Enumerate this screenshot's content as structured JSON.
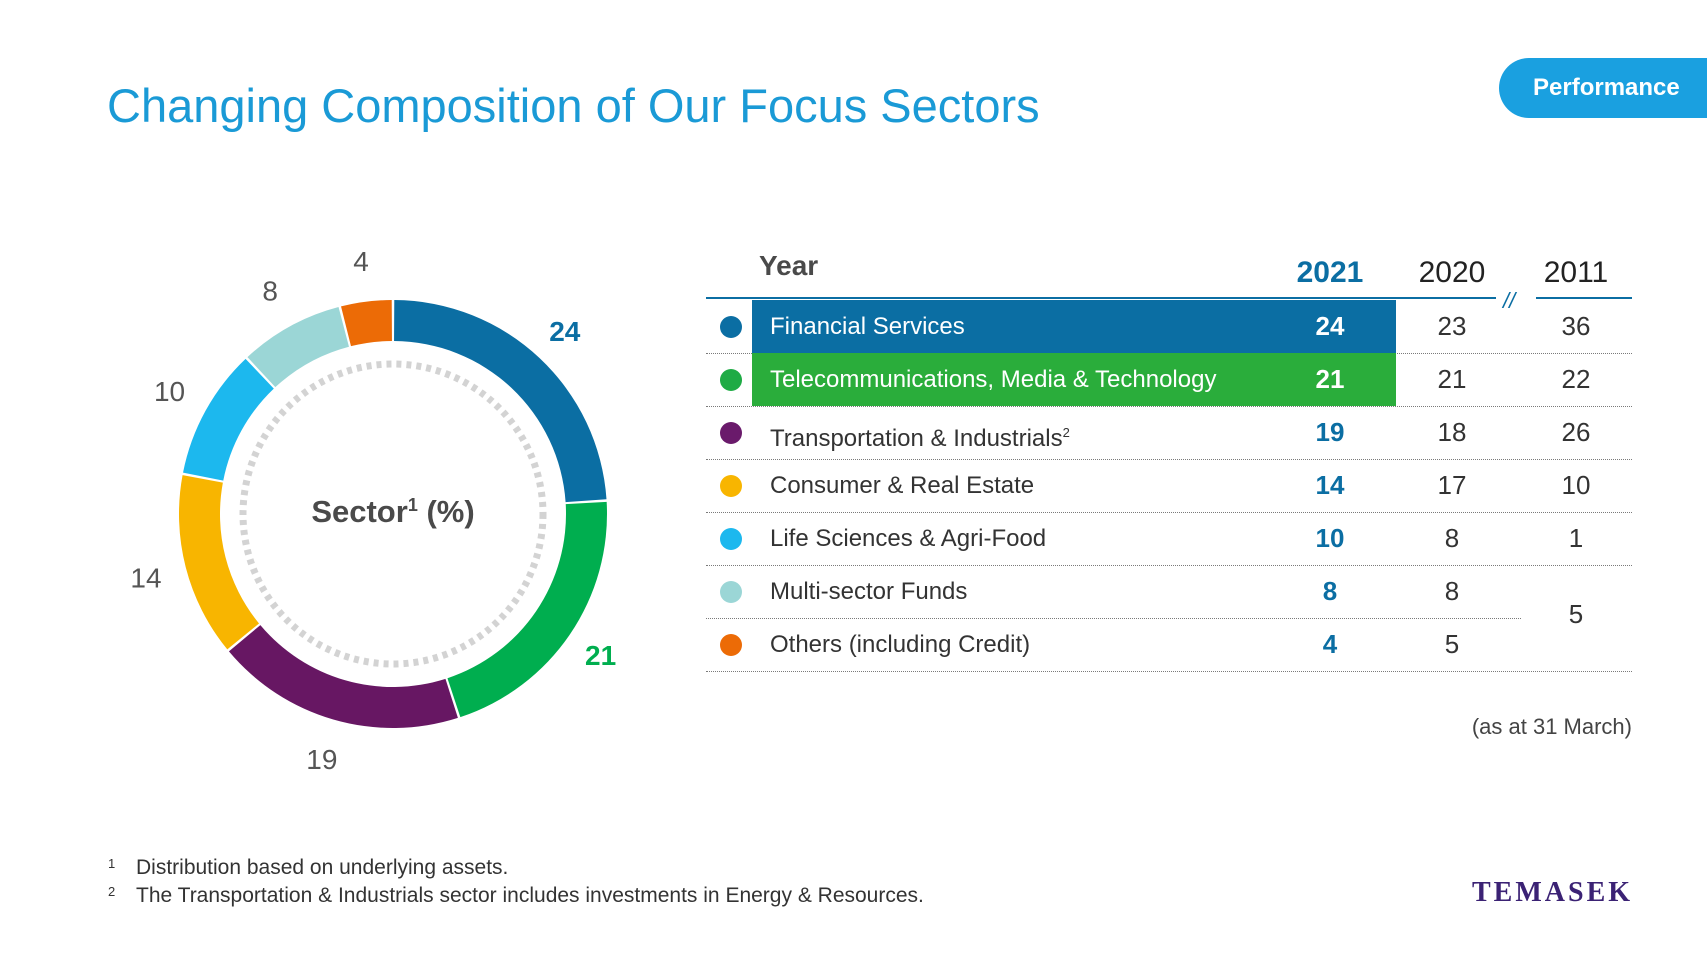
{
  "header": {
    "title": "Changing Composition of Our Focus Sectors",
    "badge": "Performance"
  },
  "donut": {
    "center_label": "Sector",
    "center_sup": "1",
    "center_suffix": " (%)"
  },
  "table": {
    "year_label": "Year",
    "years": [
      "2021",
      "2020",
      "2011"
    ],
    "rows": [
      {
        "name": "Financial Services",
        "sup": "",
        "v2021": "24",
        "v2020": "23",
        "v2011": "36",
        "color": "#0b6ea3",
        "highlight": "#0b6ea3"
      },
      {
        "name": "Telecommunications, Media & Technology",
        "sup": "",
        "v2021": "21",
        "v2020": "21",
        "v2011": "22",
        "color": "#1fab45",
        "highlight": "#2aad3b"
      },
      {
        "name": "Transportation & Industrials",
        "sup": "2",
        "v2021": "19",
        "v2020": "18",
        "v2011": "26",
        "color": "#6a1a6b",
        "highlight": ""
      },
      {
        "name": "Consumer & Real Estate",
        "sup": "",
        "v2021": "14",
        "v2020": "17",
        "v2011": "10",
        "color": "#f8b500",
        "highlight": ""
      },
      {
        "name": "Life Sciences & Agri-Food",
        "sup": "",
        "v2021": "10",
        "v2020": "8",
        "v2011": "1",
        "color": "#1cb8ee",
        "highlight": ""
      },
      {
        "name": "Multi-sector Funds",
        "sup": "",
        "v2021": "8",
        "v2020": "8",
        "v2011": "",
        "color": "#9bd6d6",
        "highlight": ""
      },
      {
        "name": "Others (including Credit)",
        "sup": "",
        "v2021": "4",
        "v2020": "5",
        "v2011": "",
        "color": "#ec6b06",
        "highlight": ""
      }
    ],
    "merged_2011_value": "5",
    "note": "(as at 31 March)"
  },
  "chart_data": {
    "type": "pie",
    "title": "",
    "categories": [
      "Financial Services",
      "Telecommunications, Media & Technology",
      "Transportation & Industrials",
      "Consumer & Real Estate",
      "Life Sciences & Agri-Food",
      "Multi-sector Funds",
      "Others (including Credit)"
    ],
    "values": [
      24,
      21,
      19,
      14,
      10,
      8,
      4
    ],
    "colors": [
      "#0b6ea3",
      "#00ae4f",
      "#671763",
      "#f8b500",
      "#1cb8ee",
      "#9bd6d6",
      "#ec6b06"
    ],
    "label_colors": [
      "#0b6ea3",
      "#00ae4f",
      "#555555",
      "#555555",
      "#555555",
      "#555555",
      "#555555"
    ],
    "bold_labels": [
      true,
      true,
      false,
      false,
      false,
      false,
      false
    ],
    "donut": true
  },
  "footnotes": [
    {
      "num": "1",
      "text": "Distribution based on underlying assets."
    },
    {
      "num": "2",
      "text": "The Transportation & Industrials sector includes investments in Energy & Resources."
    }
  ],
  "logo_text": "TEMASEK"
}
